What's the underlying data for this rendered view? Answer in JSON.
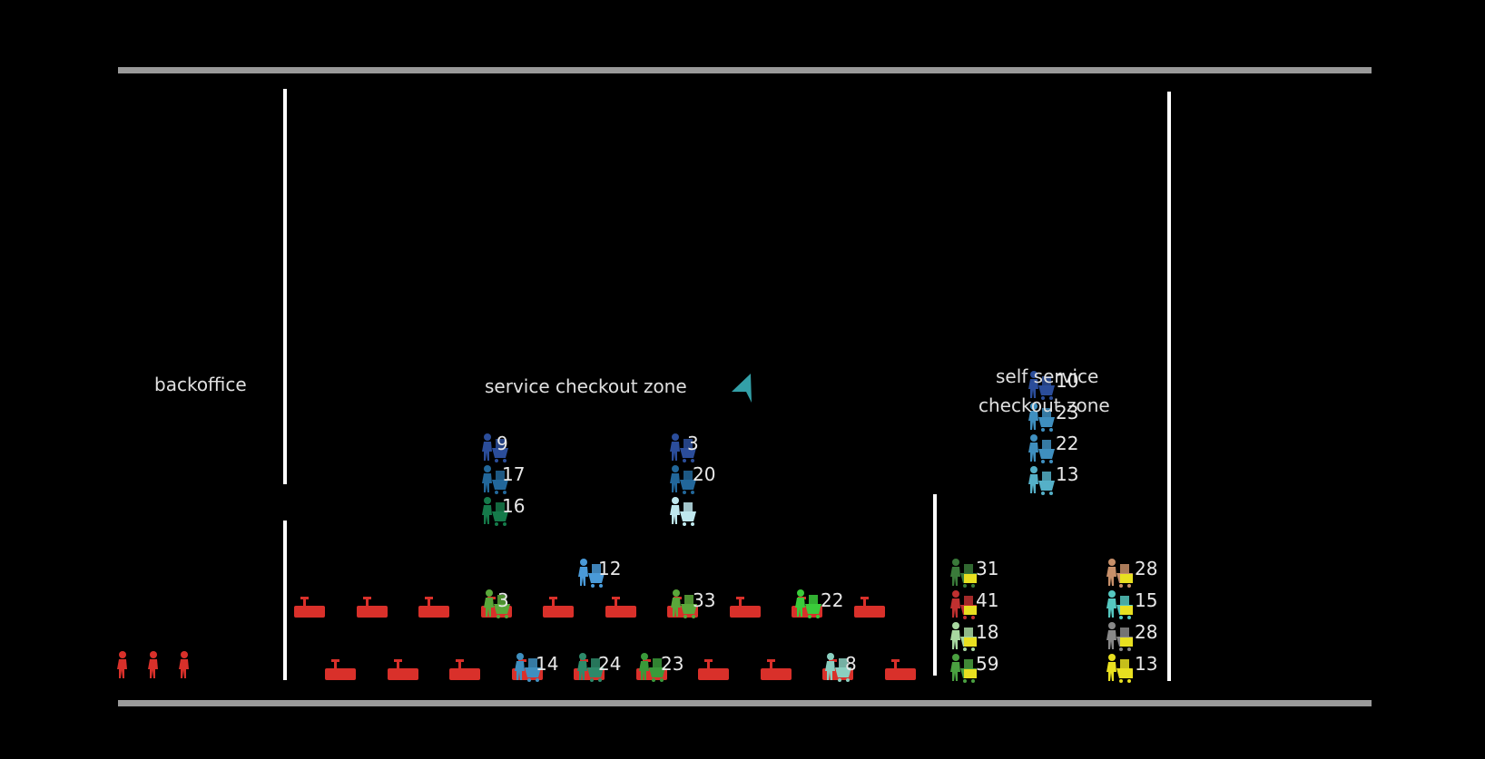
{
  "zones": {
    "backoffice": "backoffice",
    "service": "service checkout zone",
    "self_line1": "self service",
    "self_line2": "checkout zone"
  },
  "colors": {
    "counter": "#d9302a",
    "wall": "#ffffff",
    "boundary": "#9a9a9a",
    "staff": "#d9302a",
    "cursor": "#33a0a8"
  },
  "service_lanes": [
    {
      "served": "3",
      "served_color": "#5aa83a",
      "queue": [
        {
          "n": "9",
          "color": "#2b4d9a"
        },
        {
          "n": "17",
          "color": "#22679a"
        },
        {
          "n": "16",
          "color": "#157a4a"
        }
      ]
    },
    {
      "served": "33",
      "served_color": "#5aa83a",
      "queue": [
        {
          "n": "3",
          "color": "#2b4d9a"
        },
        {
          "n": "20",
          "color": "#22679a"
        },
        {
          "n": "",
          "color": "#bfe8ee"
        }
      ]
    },
    {
      "served": "22",
      "served_color": "#3acc3a",
      "queue": []
    },
    {
      "served": "12",
      "served_color": "#4a9ad8",
      "queue": []
    }
  ],
  "lower_lanes": [
    {
      "n": "14",
      "color": "#3f8fbf"
    },
    {
      "n": "24",
      "color": "#2e8a6a"
    },
    {
      "n": "23",
      "color": "#3a9a3a"
    },
    {
      "n": "8",
      "color": "#8acfc0"
    }
  ],
  "self_queue": [
    {
      "n": "10",
      "color": "#2b4d9a"
    },
    {
      "n": "23",
      "color": "#3f8fbf"
    },
    {
      "n": "22",
      "color": "#3f8fbf"
    },
    {
      "n": "13",
      "color": "#55b0c8"
    }
  ],
  "self_stations_left": [
    {
      "n": "31",
      "color": "#3a7a3a"
    },
    {
      "n": "41",
      "color": "#c03030"
    },
    {
      "n": "18",
      "color": "#a8d8a0"
    },
    {
      "n": "59",
      "color": "#4aa040"
    }
  ],
  "self_stations_right": [
    {
      "n": "28",
      "color": "#c8906a"
    },
    {
      "n": "15",
      "color": "#55c8c0"
    },
    {
      "n": "28",
      "color": "#888888"
    },
    {
      "n": "13",
      "color": "#e8e020"
    }
  ]
}
